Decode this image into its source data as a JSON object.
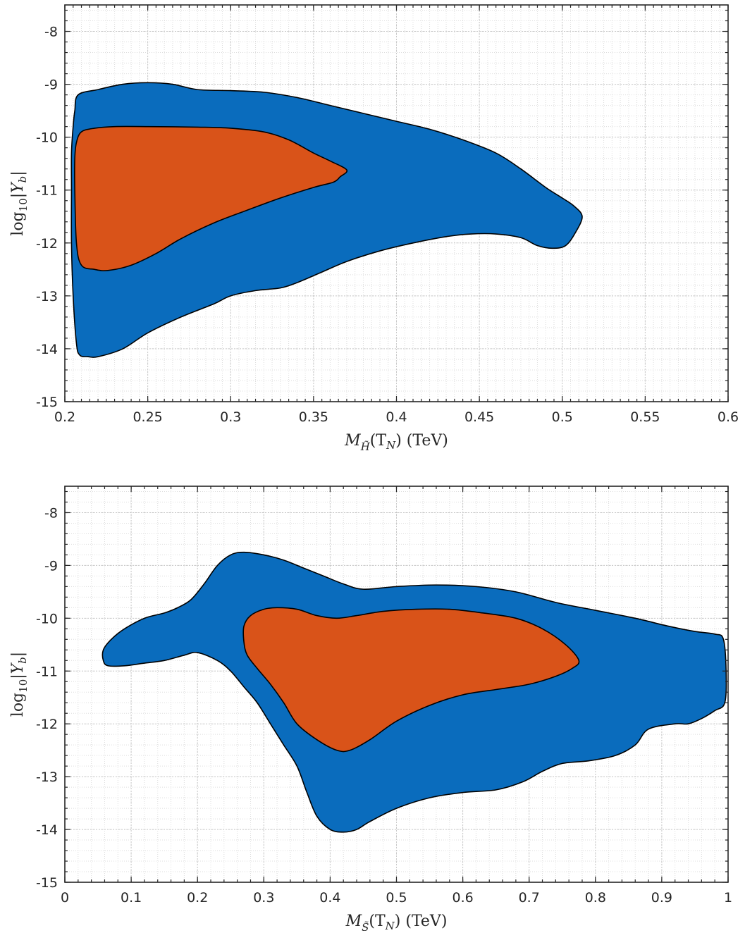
{
  "chart_data": [
    {
      "type": "area",
      "id": "top",
      "xlabel_parts": [
        "M",
        "H̃",
        "(T",
        "N",
        ") (TeV)"
      ],
      "ylabel_parts": [
        "log",
        "10",
        "|Y",
        "b",
        "|"
      ],
      "xlim": [
        0.2,
        0.6
      ],
      "ylim": [
        -15,
        -7.5
      ],
      "xticks": [
        0.2,
        0.25,
        0.3,
        0.35,
        0.4,
        0.45,
        0.5,
        0.55,
        0.6
      ],
      "xtick_labels": [
        "0.2",
        "0.25",
        "0.3",
        "0.35",
        "0.4",
        "0.45",
        "0.5",
        "0.55",
        "0.6"
      ],
      "yticks": [
        -15,
        -14,
        -13,
        -12,
        -11,
        -10,
        -9,
        -8
      ],
      "ytick_labels": [
        "-15",
        "-14",
        "-13",
        "-12",
        "-11",
        "-10",
        "-9",
        "-8"
      ],
      "x_minor": 10,
      "y_minor": 5,
      "grid": true,
      "colors": {
        "outer": "#0a6cbd",
        "inner": "#d95319"
      },
      "regions": [
        {
          "kind": "outer",
          "points": [
            [
              0.208,
              -9.2
            ],
            [
              0.22,
              -9.1
            ],
            [
              0.235,
              -9.0
            ],
            [
              0.25,
              -8.97
            ],
            [
              0.265,
              -9.0
            ],
            [
              0.28,
              -9.1
            ],
            [
              0.3,
              -9.12
            ],
            [
              0.32,
              -9.15
            ],
            [
              0.34,
              -9.25
            ],
            [
              0.36,
              -9.4
            ],
            [
              0.38,
              -9.55
            ],
            [
              0.4,
              -9.7
            ],
            [
              0.42,
              -9.85
            ],
            [
              0.44,
              -10.05
            ],
            [
              0.46,
              -10.3
            ],
            [
              0.475,
              -10.6
            ],
            [
              0.49,
              -10.95
            ],
            [
              0.5,
              -11.15
            ],
            [
              0.507,
              -11.3
            ],
            [
              0.512,
              -11.5
            ],
            [
              0.508,
              -11.8
            ],
            [
              0.502,
              -12.05
            ],
            [
              0.494,
              -12.1
            ],
            [
              0.485,
              -12.05
            ],
            [
              0.475,
              -11.9
            ],
            [
              0.46,
              -11.83
            ],
            [
              0.445,
              -11.83
            ],
            [
              0.43,
              -11.88
            ],
            [
              0.41,
              -12.0
            ],
            [
              0.39,
              -12.15
            ],
            [
              0.37,
              -12.35
            ],
            [
              0.355,
              -12.55
            ],
            [
              0.34,
              -12.75
            ],
            [
              0.33,
              -12.85
            ],
            [
              0.315,
              -12.9
            ],
            [
              0.3,
              -13.0
            ],
            [
              0.29,
              -13.15
            ],
            [
              0.27,
              -13.4
            ],
            [
              0.25,
              -13.7
            ],
            [
              0.235,
              -14.0
            ],
            [
              0.22,
              -14.15
            ],
            [
              0.214,
              -14.15
            ],
            [
              0.209,
              -14.12
            ],
            [
              0.207,
              -13.9
            ],
            [
              0.205,
              -13.0
            ],
            [
              0.204,
              -12.0
            ],
            [
              0.204,
              -11.0
            ],
            [
              0.204,
              -10.3
            ],
            [
              0.205,
              -9.8
            ],
            [
              0.206,
              -9.5
            ]
          ]
        },
        {
          "kind": "inner",
          "points": [
            [
              0.21,
              -9.9
            ],
            [
              0.218,
              -9.83
            ],
            [
              0.23,
              -9.8
            ],
            [
              0.25,
              -9.8
            ],
            [
              0.28,
              -9.81
            ],
            [
              0.3,
              -9.83
            ],
            [
              0.32,
              -9.9
            ],
            [
              0.335,
              -10.05
            ],
            [
              0.35,
              -10.3
            ],
            [
              0.36,
              -10.45
            ],
            [
              0.37,
              -10.62
            ],
            [
              0.366,
              -10.75
            ],
            [
              0.362,
              -10.85
            ],
            [
              0.35,
              -10.95
            ],
            [
              0.33,
              -11.15
            ],
            [
              0.31,
              -11.38
            ],
            [
              0.29,
              -11.62
            ],
            [
              0.27,
              -11.92
            ],
            [
              0.255,
              -12.2
            ],
            [
              0.24,
              -12.42
            ],
            [
              0.226,
              -12.52
            ],
            [
              0.218,
              -12.5
            ],
            [
              0.21,
              -12.42
            ],
            [
              0.207,
              -12.0
            ],
            [
              0.206,
              -11.0
            ],
            [
              0.206,
              -10.4
            ],
            [
              0.207,
              -10.1
            ]
          ]
        }
      ]
    },
    {
      "type": "area",
      "id": "bottom",
      "xlabel_parts": [
        "M",
        "S̃",
        "(T",
        "N",
        ") (TeV)"
      ],
      "ylabel_parts": [
        "log",
        "10",
        "|Y",
        "b",
        "|"
      ],
      "xlim": [
        0,
        1
      ],
      "ylim": [
        -15,
        -7.5
      ],
      "xticks": [
        0,
        0.1,
        0.2,
        0.3,
        0.4,
        0.5,
        0.6,
        0.7,
        0.8,
        0.9,
        1
      ],
      "xtick_labels": [
        "0",
        "0.1",
        "0.2",
        "0.3",
        "0.4",
        "0.5",
        "0.6",
        "0.7",
        "0.8",
        "0.9",
        "1"
      ],
      "yticks": [
        -15,
        -14,
        -13,
        -12,
        -11,
        -10,
        -9,
        -8
      ],
      "ytick_labels": [
        "-15",
        "-14",
        "-13",
        "-12",
        "-11",
        "-10",
        "-9",
        "-8"
      ],
      "x_minor": 5,
      "y_minor": 5,
      "grid": true,
      "colors": {
        "outer": "#0a6cbd",
        "inner": "#d95319"
      },
      "regions": [
        {
          "kind": "outer",
          "points": [
            [
              0.058,
              -10.6
            ],
            [
              0.07,
              -10.4
            ],
            [
              0.09,
              -10.2
            ],
            [
              0.12,
              -10.0
            ],
            [
              0.15,
              -9.9
            ],
            [
              0.17,
              -9.8
            ],
            [
              0.19,
              -9.65
            ],
            [
              0.21,
              -9.35
            ],
            [
              0.23,
              -9.0
            ],
            [
              0.25,
              -8.8
            ],
            [
              0.27,
              -8.75
            ],
            [
              0.3,
              -8.8
            ],
            [
              0.33,
              -8.9
            ],
            [
              0.36,
              -9.05
            ],
            [
              0.39,
              -9.2
            ],
            [
              0.42,
              -9.35
            ],
            [
              0.45,
              -9.45
            ],
            [
              0.5,
              -9.4
            ],
            [
              0.56,
              -9.37
            ],
            [
              0.62,
              -9.4
            ],
            [
              0.68,
              -9.5
            ],
            [
              0.74,
              -9.7
            ],
            [
              0.8,
              -9.85
            ],
            [
              0.86,
              -10.0
            ],
            [
              0.91,
              -10.15
            ],
            [
              0.95,
              -10.25
            ],
            [
              0.98,
              -10.3
            ],
            [
              0.993,
              -10.4
            ],
            [
              0.997,
              -11.0
            ],
            [
              0.995,
              -11.6
            ],
            [
              0.98,
              -11.75
            ],
            [
              0.96,
              -11.9
            ],
            [
              0.94,
              -12.0
            ],
            [
              0.92,
              -12.0
            ],
            [
              0.88,
              -12.1
            ],
            [
              0.86,
              -12.4
            ],
            [
              0.83,
              -12.6
            ],
            [
              0.79,
              -12.7
            ],
            [
              0.75,
              -12.75
            ],
            [
              0.72,
              -12.9
            ],
            [
              0.69,
              -13.1
            ],
            [
              0.65,
              -13.25
            ],
            [
              0.6,
              -13.3
            ],
            [
              0.55,
              -13.4
            ],
            [
              0.5,
              -13.6
            ],
            [
              0.46,
              -13.85
            ],
            [
              0.44,
              -14.0
            ],
            [
              0.42,
              -14.05
            ],
            [
              0.4,
              -14.0
            ],
            [
              0.38,
              -13.75
            ],
            [
              0.365,
              -13.3
            ],
            [
              0.35,
              -12.8
            ],
            [
              0.33,
              -12.4
            ],
            [
              0.31,
              -12.0
            ],
            [
              0.29,
              -11.6
            ],
            [
              0.27,
              -11.3
            ],
            [
              0.25,
              -11.0
            ],
            [
              0.23,
              -10.8
            ],
            [
              0.2,
              -10.65
            ],
            [
              0.18,
              -10.7
            ],
            [
              0.15,
              -10.8
            ],
            [
              0.12,
              -10.85
            ],
            [
              0.09,
              -10.9
            ],
            [
              0.065,
              -10.9
            ],
            [
              0.058,
              -10.8
            ]
          ]
        },
        {
          "kind": "inner",
          "points": [
            [
              0.27,
              -10.15
            ],
            [
              0.28,
              -9.95
            ],
            [
              0.3,
              -9.83
            ],
            [
              0.32,
              -9.8
            ],
            [
              0.35,
              -9.83
            ],
            [
              0.38,
              -9.95
            ],
            [
              0.41,
              -10.0
            ],
            [
              0.44,
              -9.95
            ],
            [
              0.48,
              -9.87
            ],
            [
              0.53,
              -9.83
            ],
            [
              0.58,
              -9.83
            ],
            [
              0.63,
              -9.9
            ],
            [
              0.68,
              -10.0
            ],
            [
              0.72,
              -10.2
            ],
            [
              0.755,
              -10.5
            ],
            [
              0.775,
              -10.8
            ],
            [
              0.765,
              -10.95
            ],
            [
              0.74,
              -11.1
            ],
            [
              0.7,
              -11.25
            ],
            [
              0.65,
              -11.35
            ],
            [
              0.6,
              -11.45
            ],
            [
              0.55,
              -11.65
            ],
            [
              0.5,
              -11.95
            ],
            [
              0.46,
              -12.3
            ],
            [
              0.43,
              -12.5
            ],
            [
              0.41,
              -12.5
            ],
            [
              0.38,
              -12.3
            ],
            [
              0.35,
              -12.0
            ],
            [
              0.33,
              -11.6
            ],
            [
              0.31,
              -11.25
            ],
            [
              0.29,
              -10.95
            ],
            [
              0.275,
              -10.7
            ],
            [
              0.27,
              -10.45
            ]
          ]
        }
      ]
    }
  ]
}
